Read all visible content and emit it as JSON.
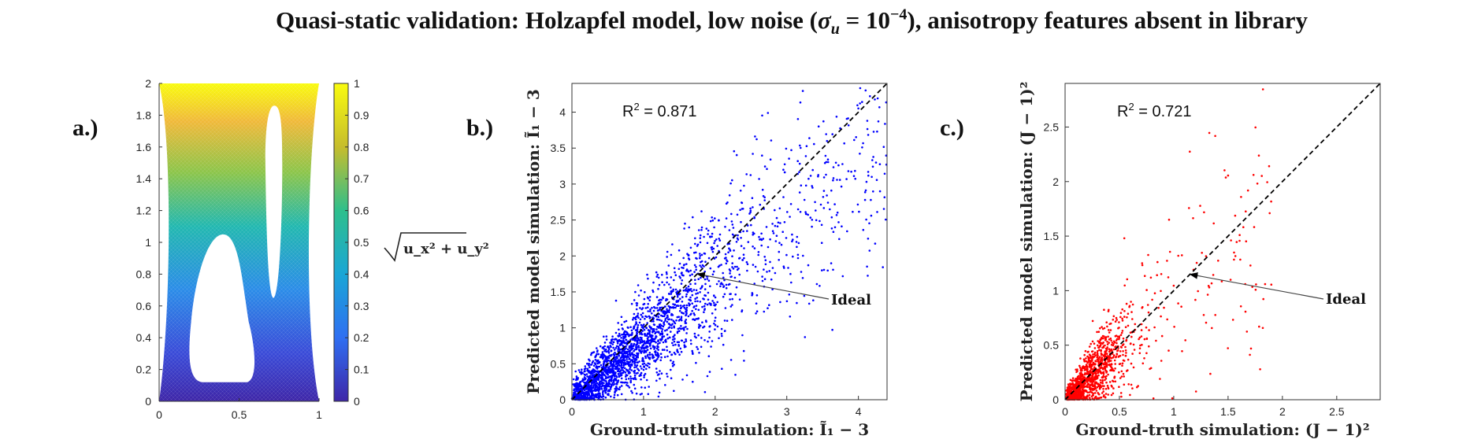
{
  "title": {
    "prefix": "Quasi-static validation: Holzapfel model, low noise (",
    "sigma": "σ",
    "sigma_sub": "u",
    "eq": " = 10",
    "exp": "−4",
    "suffix": "), anisotropy features absent in library"
  },
  "colors": {
    "panel_b_points": "#0000ff",
    "panel_c_points": "#ff0000",
    "ideal_line": "#000000",
    "colormap": [
      "#440154",
      "#3b528b",
      "#21918c",
      "#5ec962",
      "#fde725"
    ]
  },
  "chart_data": [
    {
      "panel": "a.)",
      "type": "heatmap",
      "field_label": "√(u_x² + u_y²)",
      "field_label_display": "u_x² + u_y²",
      "xlim": [
        0,
        1
      ],
      "ylim": [
        0,
        2
      ],
      "xticks": [
        "0",
        "0.5",
        "1"
      ],
      "yticks": [
        "0",
        "0.2",
        "0.4",
        "0.6",
        "0.8",
        "1",
        "1.2",
        "1.4",
        "1.6",
        "1.8",
        "2"
      ],
      "colorbar": {
        "range": [
          0,
          1
        ],
        "ticks": [
          "0",
          "0.1",
          "0.2",
          "0.3",
          "0.4",
          "0.5",
          "0.6",
          "0.7",
          "0.8",
          "0.9",
          "1"
        ]
      },
      "holes": [
        {
          "shape": "rounded lower hole",
          "x_range": [
            0.19,
            0.6
          ],
          "y_range": [
            0.12,
            1.05
          ]
        },
        {
          "shape": "rounded upper hole",
          "x_range": [
            0.66,
            0.77
          ],
          "y_range": [
            0.65,
            1.86
          ]
        }
      ]
    },
    {
      "panel": "b.)",
      "type": "scatter",
      "xlabel": "Ground-truth simulation: Ĩ₁ − 3",
      "ylabel": "Predicted model simulation: Ĩ₁ − 3",
      "xlim": [
        0,
        4.4
      ],
      "ylim": [
        0,
        4.4
      ],
      "xticks": [
        "0",
        "1",
        "2",
        "3",
        "4"
      ],
      "yticks": [
        "0",
        "0.5",
        "1",
        "1.5",
        "2",
        "2.5",
        "3",
        "3.5",
        "4"
      ],
      "annotation_r2": "0.871",
      "r2_prefix": "R",
      "r2_exp": "2",
      "r2_eq": " = ",
      "ideal_label": "Ideal",
      "ideal_line": {
        "from": [
          0,
          0
        ],
        "to": [
          4.4,
          4.4
        ],
        "style": "dashed"
      },
      "ideal_arrow_tip": [
        1.75,
        1.75
      ],
      "point_cloud": {
        "x_max": 4.4,
        "y_max": 4.3,
        "trend_slope": 0.82,
        "count_shown": 2600
      }
    },
    {
      "panel": "c.)",
      "type": "scatter",
      "xlabel": "Ground-truth simulation: (J − 1)²",
      "ylabel": "Predicted model simulation: (J − 1)²",
      "xlim": [
        0,
        2.9
      ],
      "ylim": [
        0,
        2.9
      ],
      "xticks": [
        "0",
        "0.5",
        "1",
        "1.5",
        "2",
        "2.5"
      ],
      "yticks": [
        "0",
        "0.5",
        "1",
        "1.5",
        "2",
        "2.5"
      ],
      "annotation_r2": "0.721",
      "r2_prefix": "R",
      "r2_exp": "2",
      "r2_eq": " = ",
      "ideal_label": "Ideal",
      "ideal_line": {
        "from": [
          0,
          0
        ],
        "to": [
          2.9,
          2.9
        ],
        "style": "dashed"
      },
      "ideal_arrow_tip": [
        1.15,
        1.15
      ],
      "point_cloud": {
        "x_max": 1.9,
        "y_max": 2.9,
        "trend_slope": 0.9,
        "count_shown": 1300
      }
    }
  ]
}
